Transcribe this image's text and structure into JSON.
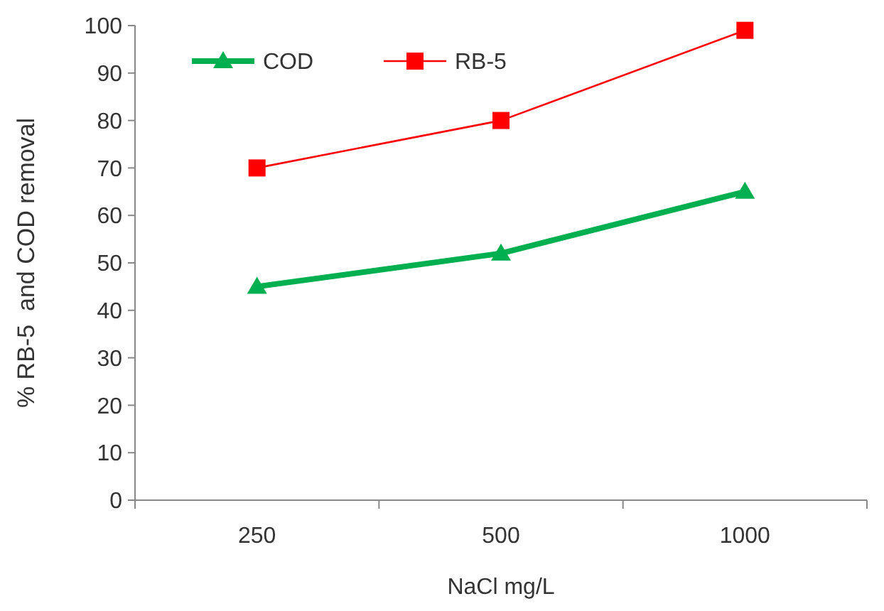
{
  "chart_data": {
    "type": "line",
    "xlabel": "NaCl mg/L",
    "ylabel": "% RB-5  and COD removal",
    "categories": [
      "250",
      "500",
      "1000"
    ],
    "ylim": [
      0,
      100
    ],
    "yticks": [
      0,
      10,
      20,
      30,
      40,
      50,
      60,
      70,
      80,
      90,
      100
    ],
    "legend": "top left",
    "grid": false,
    "line_style": "solid",
    "series": [
      {
        "name": "COD",
        "color": "#00b050",
        "marker": "triangle",
        "values": [
          45,
          52,
          65
        ]
      },
      {
        "name": "RB-5",
        "color": "#ff0000",
        "marker": "square",
        "values": [
          70,
          80,
          99
        ]
      }
    ]
  }
}
